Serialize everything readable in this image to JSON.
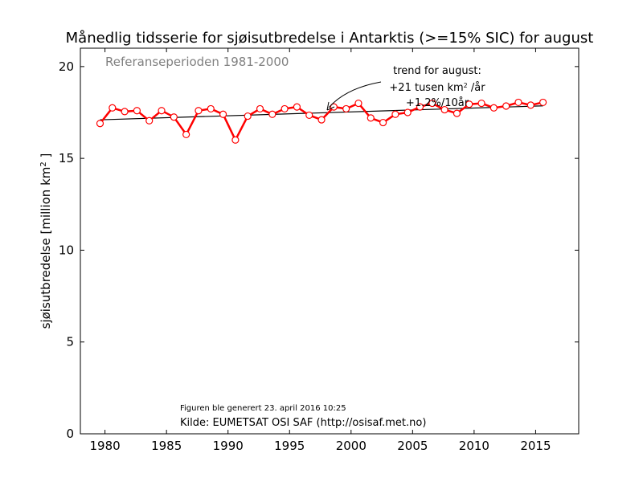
{
  "chart_data": {
    "type": "line",
    "title": "Månedlig tidsserie for sjøisutbredelse i Antarktis (>=15% SIC) for august",
    "xlabel": "",
    "ylabel_main": "sjøisutbredelse [million km",
    "ylabel_sup": "2",
    "ylabel_end": " ]",
    "xlim": [
      1978,
      2018.5
    ],
    "ylim": [
      0,
      21
    ],
    "x_ticks": [
      1980,
      1985,
      1990,
      1995,
      2000,
      2005,
      2010,
      2015
    ],
    "y_ticks": [
      0,
      5,
      10,
      15,
      20
    ],
    "grid": false,
    "x": [
      1979.6,
      1980.6,
      1981.6,
      1982.6,
      1983.6,
      1984.6,
      1985.6,
      1986.6,
      1987.6,
      1988.6,
      1989.6,
      1990.6,
      1991.6,
      1992.6,
      1993.6,
      1994.6,
      1995.6,
      1996.6,
      1997.6,
      1998.6,
      1999.6,
      2000.6,
      2001.6,
      2002.6,
      2003.6,
      2004.6,
      2005.6,
      2006.6,
      2007.6,
      2008.6,
      2009.6,
      2010.6,
      2011.6,
      2012.6,
      2013.6,
      2014.6,
      2015.6
    ],
    "series": [
      {
        "values": [
          16.9,
          17.75,
          17.55,
          17.6,
          17.05,
          17.6,
          17.25,
          16.3,
          17.6,
          17.7,
          17.4,
          16.0,
          17.3,
          17.7,
          17.4,
          17.7,
          17.8,
          17.35,
          17.1,
          17.8,
          17.7,
          18.0,
          17.2,
          16.95,
          17.4,
          17.5,
          17.8,
          18.0,
          17.65,
          17.45,
          17.95,
          18.0,
          17.75,
          17.85,
          18.05,
          17.9,
          18.05
        ],
        "color": "#ff0000"
      }
    ],
    "trend": {
      "x": [
        1979.6,
        2015.6
      ],
      "y": [
        17.1,
        17.86
      ],
      "color": "#000000"
    },
    "reference_text": "Referanseperioden 1981-2000",
    "annotation": {
      "line1": "trend for august:",
      "line2_pre": "+21 tusen km",
      "line2_sup": "2",
      "line2_post": " /år",
      "line3": "+1.2%/10år",
      "arrow_target": [
        1997.7,
        17.6
      ]
    },
    "footer_generated": "Figuren ble generert 23. april 2016 10:25",
    "footer_source": "Kilde: EUMETSAT OSI SAF (http://osisaf.met.no)"
  }
}
